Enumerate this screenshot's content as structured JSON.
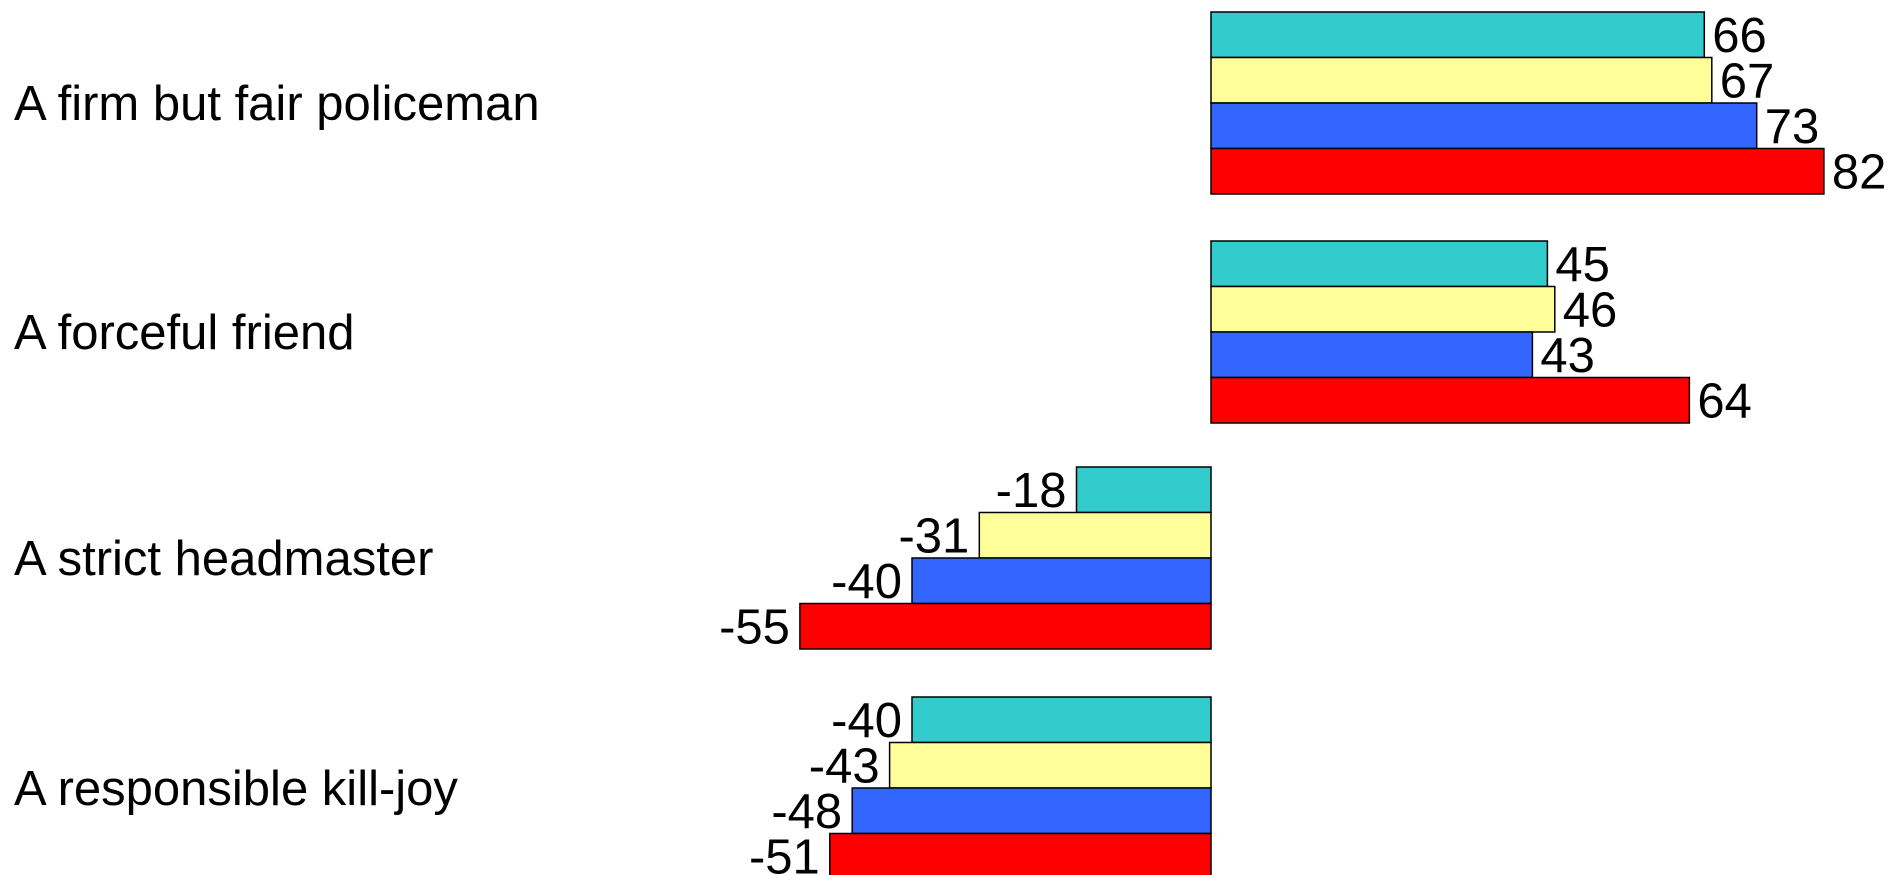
{
  "chart_data": {
    "type": "bar",
    "orientation": "horizontal",
    "categories": [
      "A firm but fair policeman",
      "A forceful friend",
      "A strict headmaster",
      "A responsible kill-joy"
    ],
    "series": [
      {
        "color": "#33cccc",
        "values": [
          66,
          45,
          -18,
          -40
        ]
      },
      {
        "color": "#ffff99",
        "values": [
          67,
          46,
          -31,
          -43
        ]
      },
      {
        "color": "#3366ff",
        "values": [
          73,
          43,
          -40,
          -48
        ]
      },
      {
        "color": "#ff0000",
        "values": [
          82,
          64,
          -55,
          -51
        ]
      }
    ],
    "grid": false,
    "legend": "none"
  }
}
